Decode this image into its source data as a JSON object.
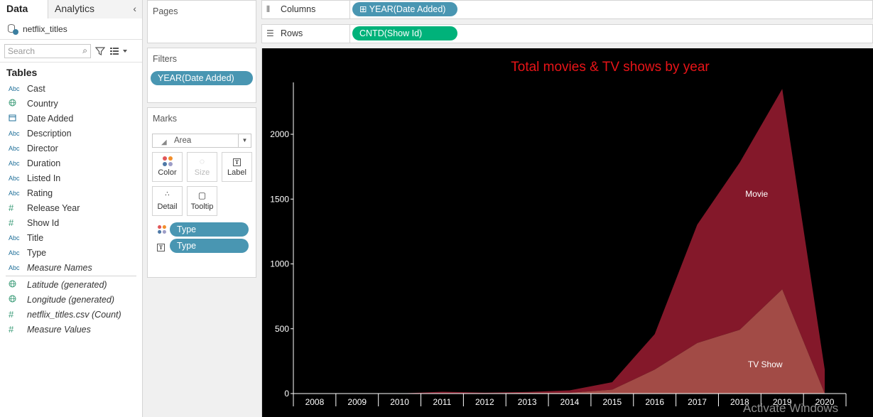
{
  "data_pane": {
    "tabs": [
      "Data",
      "Analytics"
    ],
    "datasource": "netflix_titles",
    "search_placeholder": "Search",
    "tables_title": "Tables",
    "fields": [
      {
        "type": "Abc",
        "name": "Cast",
        "italic": false
      },
      {
        "type": "geo",
        "name": "Country",
        "italic": false
      },
      {
        "type": "date",
        "name": "Date Added",
        "italic": false
      },
      {
        "type": "Abc",
        "name": "Description",
        "italic": false
      },
      {
        "type": "Abc",
        "name": "Director",
        "italic": false
      },
      {
        "type": "Abc",
        "name": "Duration",
        "italic": false
      },
      {
        "type": "Abc",
        "name": "Listed In",
        "italic": false
      },
      {
        "type": "Abc",
        "name": "Rating",
        "italic": false
      },
      {
        "type": "#",
        "name": "Release Year",
        "italic": false
      },
      {
        "type": "#",
        "name": "Show Id",
        "italic": false
      },
      {
        "type": "Abc",
        "name": "Title",
        "italic": false
      },
      {
        "type": "Abc",
        "name": "Type",
        "italic": false
      },
      {
        "type": "Abc",
        "name": "Measure Names",
        "italic": true
      }
    ],
    "measures": [
      {
        "type": "geo",
        "name": "Latitude (generated)",
        "italic": true
      },
      {
        "type": "geo",
        "name": "Longitude (generated)",
        "italic": true
      },
      {
        "type": "#",
        "name": "netflix_titles.csv (Count)",
        "italic": true
      },
      {
        "type": "#",
        "name": "Measure Values",
        "italic": true
      }
    ]
  },
  "pages": {
    "title": "Pages"
  },
  "filters": {
    "title": "Filters",
    "pill": "YEAR(Date Added)"
  },
  "marks": {
    "title": "Marks",
    "mark_type": "Area",
    "buttons": [
      "Color",
      "Size",
      "Label",
      "Detail",
      "Tooltip"
    ],
    "fields": [
      "Type",
      "Type"
    ]
  },
  "columns": {
    "label": "Columns",
    "pill": "YEAR(Date Added)"
  },
  "rows": {
    "label": "Rows",
    "pill": "CNTD(Show Id)"
  },
  "watermark": "Activate Windows",
  "colors": {
    "title": "#e81418",
    "movie": "#84182a",
    "tv": "#a24b46",
    "pill_blue": "#4996b2",
    "pill_green": "#00b27a"
  },
  "chart_data": {
    "type": "area",
    "title": "Total movies & TV shows by year",
    "categories": [
      "2008",
      "2009",
      "2010",
      "2011",
      "2012",
      "2013",
      "2014",
      "2015",
      "2016",
      "2017",
      "2018",
      "2019",
      "2020"
    ],
    "series": [
      {
        "name": "TV Show",
        "values": [
          1,
          0,
          0,
          1,
          3,
          6,
          6,
          30,
          185,
          390,
          492,
          804,
          0
        ]
      },
      {
        "name": "Movie",
        "values": [
          1,
          2,
          1,
          13,
          4,
          6,
          19,
          58,
          273,
          913,
          1290,
          1546,
          184
        ]
      }
    ],
    "stacked": true,
    "yticks": [
      0,
      500,
      1000,
      1500,
      2000
    ],
    "ylim": [
      0,
      2400
    ],
    "xlabel": "",
    "ylabel": "",
    "grid": false
  }
}
